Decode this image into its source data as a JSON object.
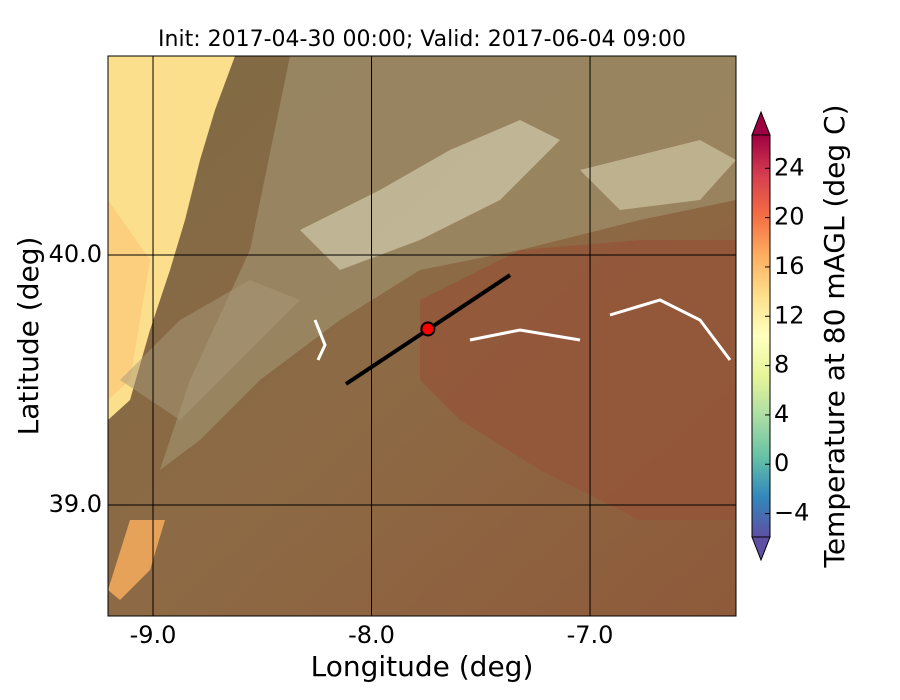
{
  "chart_data": {
    "type": "map",
    "title": "Init: 2017-04-30 00:00; Valid: 2017-06-04 09:00",
    "x_label": "Longitude (deg)",
    "y_label": "Latitude (deg)",
    "xlim": [
      -9.206,
      -6.332
    ],
    "ylim": [
      38.556,
      40.796
    ],
    "xticks": [
      {
        "value": -9,
        "label": "-9.0"
      },
      {
        "value": -8,
        "label": "-8.0"
      },
      {
        "value": -7,
        "label": "-7.0"
      }
    ],
    "yticks": [
      {
        "value": 39,
        "label": "39.0"
      },
      {
        "value": 40,
        "label": "40.0"
      }
    ],
    "grid": true,
    "colorbar": {
      "label": "Temperature at 80 mAGL (deg C)",
      "lim": [
        -5.9,
        26.7
      ],
      "ticks": [
        {
          "value": -4,
          "label": "−4"
        },
        0,
        4,
        8,
        12,
        16,
        20,
        24
      ],
      "colormap": [
        "#5e4fa2",
        "#3288bd",
        "#66c2a5",
        "#abdda4",
        "#e6f598",
        "#ffffbf",
        "#fee08b",
        "#fdae61",
        "#f46d43",
        "#d53e4f",
        "#9e0142"
      ],
      "extend": "both"
    },
    "cross_section": {
      "lon": [
        -8.117,
        -7.366
      ],
      "lat": [
        39.484,
        39.92
      ],
      "color": "#000000"
    },
    "point": {
      "lon": -7.742,
      "lat": 39.704,
      "color": "#ff0000"
    }
  }
}
